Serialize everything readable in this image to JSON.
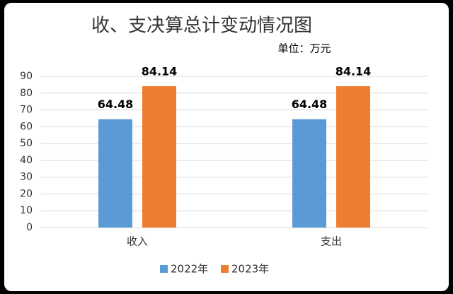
{
  "chart_data": {
    "type": "bar",
    "title": "收、支决算总计变动情况图",
    "subtitle": "单位：万元",
    "categories": [
      "收入",
      "支出"
    ],
    "series": [
      {
        "name": "2022年",
        "color": "#5b9bd5",
        "values": [
          64.48,
          64.48
        ]
      },
      {
        "name": "2023年",
        "color": "#ed7d31",
        "values": [
          84.14,
          84.14
        ]
      }
    ],
    "ylim": [
      0,
      90
    ],
    "yticks": [
      0,
      10,
      20,
      30,
      40,
      50,
      60,
      70,
      80,
      90
    ],
    "grid": true
  }
}
